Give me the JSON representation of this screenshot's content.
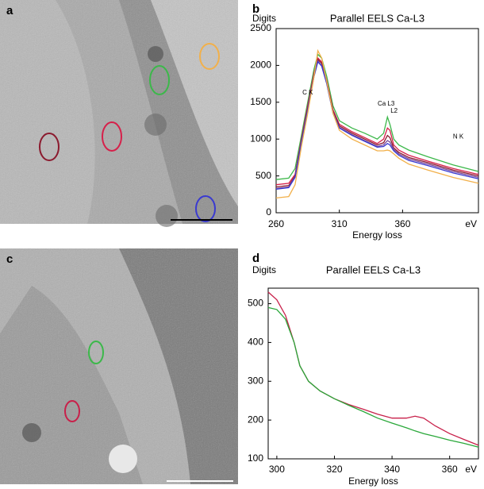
{
  "panel_labels": [
    "a",
    "b",
    "c",
    "d"
  ],
  "chart_data": [
    {
      "type": "line",
      "title": "Parallel EELS Ca-L3",
      "y_label": "Digits",
      "x_label": "Energy loss",
      "x_end_label": "eV",
      "annotations": [
        "C K",
        "Ca L3",
        "L2",
        "N K"
      ],
      "x": [
        260,
        270,
        275,
        280,
        285,
        290,
        293,
        296,
        300,
        305,
        310,
        320,
        330,
        340,
        345,
        348,
        350,
        353,
        357,
        365,
        380,
        400,
        420
      ],
      "series": [
        {
          "color": "#3cb84a",
          "values": [
            450,
            470,
            600,
            1050,
            1500,
            1950,
            2150,
            2100,
            1850,
            1450,
            1250,
            1150,
            1080,
            1000,
            1080,
            1300,
            1200,
            1000,
            920,
            850,
            760,
            650,
            560
          ]
        },
        {
          "color": "#d6204a",
          "values": [
            380,
            400,
            520,
            1000,
            1450,
            1900,
            2100,
            2050,
            1800,
            1400,
            1200,
            1100,
            1020,
            940,
            1000,
            1150,
            1120,
            920,
            850,
            780,
            700,
            600,
            520
          ]
        },
        {
          "color": "#8b1a2e",
          "values": [
            350,
            370,
            500,
            980,
            1420,
            1880,
            2080,
            2030,
            1780,
            1380,
            1180,
            1080,
            1000,
            920,
            950,
            1050,
            1020,
            880,
            820,
            750,
            680,
            580,
            500
          ]
        },
        {
          "color": "#7a4a9a",
          "values": [
            330,
            350,
            490,
            960,
            1400,
            1860,
            2060,
            2000,
            1760,
            1360,
            1160,
            1060,
            980,
            900,
            920,
            980,
            960,
            860,
            800,
            730,
            660,
            560,
            480
          ]
        },
        {
          "color": "#3a3ad0",
          "values": [
            320,
            340,
            480,
            950,
            1390,
            1850,
            2050,
            1990,
            1750,
            1350,
            1150,
            1050,
            970,
            890,
            900,
            940,
            920,
            840,
            780,
            710,
            640,
            540,
            460
          ]
        },
        {
          "color": "#f2b04a",
          "values": [
            200,
            220,
            380,
            900,
            1350,
            1850,
            2200,
            2100,
            1780,
            1350,
            1120,
            1000,
            920,
            840,
            840,
            850,
            840,
            800,
            740,
            660,
            580,
            480,
            400
          ]
        }
      ],
      "xlim": [
        260,
        420
      ],
      "xticks": [
        260,
        310,
        360
      ],
      "ylim": [
        0,
        2500
      ],
      "yticks": [
        0,
        500,
        1000,
        1500,
        2000,
        2500
      ]
    },
    {
      "type": "line",
      "title": "Parallel EELS Ca-L3",
      "y_label": "Digits",
      "x_label": "Energy loss",
      "x_end_label": "eV",
      "x": [
        297,
        300,
        303,
        306,
        308,
        311,
        315,
        320,
        325,
        330,
        335,
        340,
        345,
        348,
        351,
        355,
        360,
        365,
        370
      ],
      "series": [
        {
          "color": "#c8204a",
          "values": [
            530,
            510,
            470,
            400,
            340,
            300,
            275,
            255,
            240,
            228,
            215,
            205,
            205,
            210,
            205,
            185,
            165,
            150,
            135
          ]
        },
        {
          "color": "#2aa83a",
          "values": [
            490,
            485,
            460,
            400,
            340,
            300,
            275,
            255,
            238,
            222,
            205,
            192,
            180,
            172,
            165,
            158,
            148,
            140,
            130
          ]
        }
      ],
      "xlim": [
        297,
        370
      ],
      "xticks": [
        300,
        320,
        340,
        360
      ],
      "ylim": [
        100,
        540
      ],
      "yticks": [
        100,
        200,
        300,
        400,
        500
      ]
    }
  ]
}
